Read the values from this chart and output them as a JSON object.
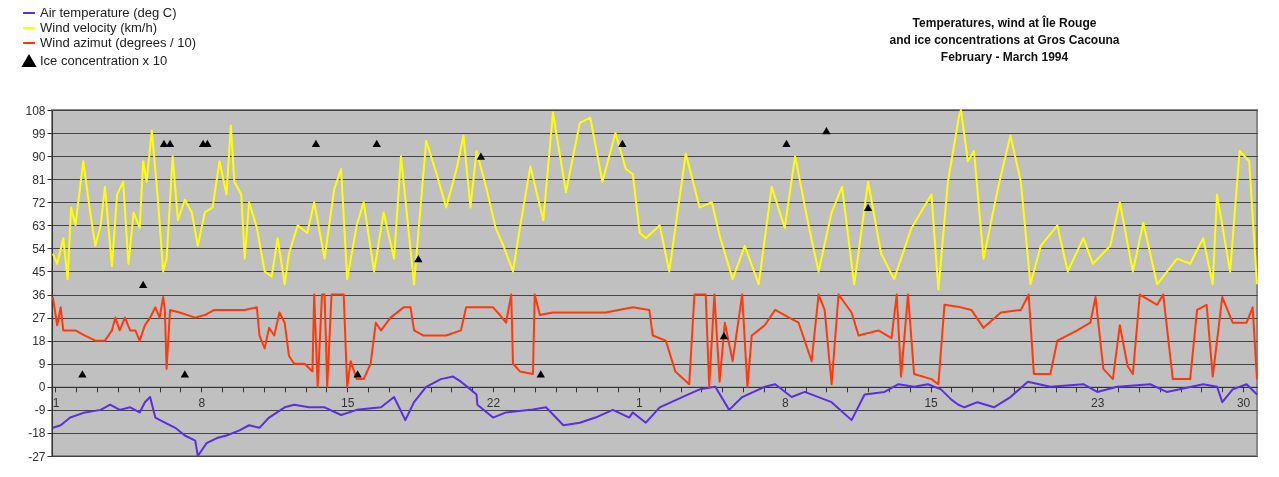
{
  "chart_data": {
    "type": "line",
    "title": "Temperatures, wind at Île Rouge\nand ice concentrations at Gros Cacouna\nFebruary - March  1994",
    "legend": "top left",
    "grid": "y",
    "xlim": [
      "1994-01-31T20:00",
      "1994-03-30T16:00"
    ],
    "ylim": [
      -27,
      108
    ],
    "yticks": [
      -27,
      -18,
      -9,
      0,
      9,
      18,
      27,
      36,
      45,
      54,
      63,
      72,
      81,
      90,
      99,
      108
    ],
    "xticks": [
      {
        "value": "1994-02-01",
        "label": "1"
      },
      {
        "value": "1994-02-02",
        "label": null
      },
      {
        "value": "1994-02-03",
        "label": null
      },
      {
        "value": "1994-02-04",
        "label": null
      },
      {
        "value": "1994-02-05",
        "label": null
      },
      {
        "value": "1994-02-06",
        "label": null
      },
      {
        "value": "1994-02-07",
        "label": null
      },
      {
        "value": "1994-02-08",
        "label": "8"
      },
      {
        "value": "1994-02-09",
        "label": null
      },
      {
        "value": "1994-02-10",
        "label": null
      },
      {
        "value": "1994-02-11",
        "label": null
      },
      {
        "value": "1994-02-12",
        "label": null
      },
      {
        "value": "1994-02-13",
        "label": null
      },
      {
        "value": "1994-02-14",
        "label": null
      },
      {
        "value": "1994-02-15",
        "label": "15"
      },
      {
        "value": "1994-02-16",
        "label": null
      },
      {
        "value": "1994-02-17",
        "label": null
      },
      {
        "value": "1994-02-18",
        "label": null
      },
      {
        "value": "1994-02-19",
        "label": null
      },
      {
        "value": "1994-02-20",
        "label": null
      },
      {
        "value": "1994-02-21",
        "label": null
      },
      {
        "value": "1994-02-22",
        "label": "22"
      },
      {
        "value": "1994-02-23",
        "label": null
      },
      {
        "value": "1994-02-24",
        "label": null
      },
      {
        "value": "1994-02-25",
        "label": null
      },
      {
        "value": "1994-02-26",
        "label": null
      },
      {
        "value": "1994-02-27",
        "label": null
      },
      {
        "value": "1994-02-28",
        "label": null
      },
      {
        "value": "1994-03-01",
        "label": "1"
      },
      {
        "value": "1994-03-02",
        "label": null
      },
      {
        "value": "1994-03-03",
        "label": null
      },
      {
        "value": "1994-03-04",
        "label": null
      },
      {
        "value": "1994-03-05",
        "label": null
      },
      {
        "value": "1994-03-06",
        "label": null
      },
      {
        "value": "1994-03-07",
        "label": null
      },
      {
        "value": "1994-03-08",
        "label": "8"
      },
      {
        "value": "1994-03-09",
        "label": null
      },
      {
        "value": "1994-03-10",
        "label": null
      },
      {
        "value": "1994-03-11",
        "label": null
      },
      {
        "value": "1994-03-12",
        "label": null
      },
      {
        "value": "1994-03-13",
        "label": null
      },
      {
        "value": "1994-03-14",
        "label": null
      },
      {
        "value": "1994-03-15",
        "label": "15"
      },
      {
        "value": "1994-03-16",
        "label": null
      },
      {
        "value": "1994-03-17",
        "label": null
      },
      {
        "value": "1994-03-18",
        "label": null
      },
      {
        "value": "1994-03-19",
        "label": null
      },
      {
        "value": "1994-03-20",
        "label": null
      },
      {
        "value": "1994-03-21",
        "label": null
      },
      {
        "value": "1994-03-22",
        "label": null
      },
      {
        "value": "1994-03-23",
        "label": "23"
      },
      {
        "value": "1994-03-24",
        "label": null
      },
      {
        "value": "1994-03-25",
        "label": null
      },
      {
        "value": "1994-03-26",
        "label": null
      },
      {
        "value": "1994-03-27",
        "label": null
      },
      {
        "value": "1994-03-28",
        "label": null
      },
      {
        "value": "1994-03-29",
        "label": null
      },
      {
        "value": "1994-03-30",
        "label": "30"
      }
    ],
    "series": [
      {
        "name": "Air temperature (deg C)",
        "color": "#5a2ee6",
        "x": [
          "1994-01-31T21:00",
          "1994-02-01T06:00",
          "1994-02-01T17:00",
          "1994-02-02T10:00",
          "1994-02-03T04:00",
          "1994-02-03T15:00",
          "1994-02-04T02:00",
          "1994-02-04T14:00",
          "1994-02-05T01:00",
          "1994-02-05T07:00",
          "1994-02-05T13:00",
          "1994-02-05T19:00",
          "1994-02-06T06:00",
          "1994-02-06T18:00",
          "1994-02-07T05:00",
          "1994-02-07T17:00",
          "1994-02-07T20:00",
          "1994-02-08T06:00",
          "1994-02-08T18:00",
          "1994-02-09T05:00",
          "1994-02-09T20:00",
          "1994-02-10T07:00",
          "1994-02-10T19:00",
          "1994-02-11T06:00",
          "1994-02-12T00:00",
          "1994-02-12T11:00",
          "1994-02-13T04:00",
          "1994-02-13T22:00",
          "1994-02-14T17:00",
          "1994-02-15T11:00",
          "1994-02-16T15:00",
          "1994-02-17T06:00",
          "1994-02-17T19:00",
          "1994-02-18T05:00",
          "1994-02-18T19:00",
          "1994-02-19T12:00",
          "1994-02-20T02:00",
          "1994-02-20T11:00",
          "1994-02-20T22:00",
          "1994-02-21T05:00",
          "1994-02-21T06:00",
          "1994-02-22T00:00",
          "1994-02-22T15:00",
          "1994-02-23T19:00",
          "1994-02-24T13:00",
          "1994-02-25T09:00",
          "1994-02-26T04:00",
          "1994-02-26T22:00",
          "1994-02-27T18:00",
          "1994-02-28T13:00",
          "1994-02-28T17:00",
          "1994-03-01T08:00",
          "1994-03-02T00:00",
          "1994-03-03T02:00",
          "1994-03-03T22:00",
          "1994-03-04T16:00",
          "1994-03-05T08:00",
          "1994-03-05T23:00",
          "1994-03-07T01:00",
          "1994-03-07T13:00",
          "1994-03-08T08:00",
          "1994-03-08T23:00",
          "1994-03-10T06:00",
          "1994-03-11T05:00",
          "1994-03-11T20:00",
          "1994-03-12T19:00",
          "1994-03-13T11:00",
          "1994-03-14T05:00",
          "1994-03-14T21:00",
          "1994-03-15T12:00",
          "1994-03-16T00:00",
          "1994-03-16T08:00",
          "1994-03-16T15:00",
          "1994-03-17T06:00",
          "1994-03-18T01:00",
          "1994-03-18T20:00",
          "1994-03-19T16:00",
          "1994-03-20T18:00",
          "1994-03-22T08:00",
          "1994-03-23T00:00",
          "1994-03-23T23:00",
          "1994-03-25T13:00",
          "1994-03-26T08:00",
          "1994-03-28T02:00",
          "1994-03-28T18:00",
          "1994-03-29T00:00",
          "1994-03-29T12:00",
          "1994-03-30T04:00",
          "1994-03-30T16:00"
        ],
        "values": [
          -16,
          -15,
          -12,
          -10,
          -9,
          -7,
          -9,
          -8,
          -10,
          -6,
          -4,
          -12,
          -14,
          -16,
          -19,
          -21,
          -27,
          -22,
          -20,
          -19,
          -17,
          -15,
          -16,
          -12,
          -8,
          -7,
          -8,
          -8,
          -11,
          -9,
          -8,
          -4,
          -13,
          -6,
          0,
          3,
          4,
          2,
          -1,
          -3,
          -7,
          -12,
          -10,
          -9,
          -8,
          -15,
          -14,
          -12,
          -9,
          -12,
          -10,
          -14,
          -8,
          -4,
          -1,
          0,
          -9,
          -4,
          0,
          1,
          -4,
          -2,
          -6,
          -13,
          -3,
          -2,
          1,
          0,
          1,
          -1,
          -5,
          -7,
          -8,
          -6,
          -8,
          -4,
          2,
          0,
          1,
          -2,
          0,
          1,
          -2,
          1,
          0,
          -6,
          -1,
          1,
          -3
        ]
      },
      {
        "name": "Wind velocity (km/h)",
        "color": "#ffff00",
        "x": [
          "1994-01-31T21:00",
          "1994-02-01T02:00",
          "1994-02-01T09:00",
          "1994-02-01T14:00",
          "1994-02-01T18:00",
          "1994-02-01T23:00",
          "1994-02-02T08:00",
          "1994-02-02T16:00",
          "1994-02-02T22:00",
          "1994-02-03T04:00",
          "1994-02-03T09:00",
          "1994-02-03T17:00",
          "1994-02-03T23:00",
          "1994-02-04T06:00",
          "1994-02-04T12:00",
          "1994-02-04T18:00",
          "1994-02-05T01:00",
          "1994-02-05T05:00",
          "1994-02-05T09:00",
          "1994-02-05T15:00",
          "1994-02-05T22:00",
          "1994-02-06T04:00",
          "1994-02-06T08:00",
          "1994-02-06T15:00",
          "1994-02-06T21:00",
          "1994-02-07T05:00",
          "1994-02-07T13:00",
          "1994-02-07T20:00",
          "1994-02-08T04:00",
          "1994-02-08T13:00",
          "1994-02-08T21:00",
          "1994-02-09T05:00",
          "1994-02-09T10:00",
          "1994-02-09T14:00",
          "1994-02-09T22:00",
          "1994-02-10T02:00",
          "1994-02-10T07:00",
          "1994-02-10T16:00",
          "1994-02-11T01:00",
          "1994-02-11T09:00",
          "1994-02-11T16:00",
          "1994-02-12T00:00",
          "1994-02-12T05:00",
          "1994-02-12T15:00",
          "1994-02-13T02:00",
          "1994-02-13T10:00",
          "1994-02-13T22:00",
          "1994-02-14T09:00",
          "1994-02-14T17:00",
          "1994-02-15T00:00",
          "1994-02-15T11:00",
          "1994-02-15T19:00",
          "1994-02-16T07:00",
          "1994-02-16T18:00",
          "1994-02-17T06:00",
          "1994-02-17T14:00",
          "1994-02-18T05:00",
          "1994-02-18T19:00",
          "1994-02-19T07:00",
          "1994-02-19T18:00",
          "1994-02-20T06:00",
          "1994-02-20T14:00",
          "1994-02-20T22:00",
          "1994-02-21T05:00",
          "1994-02-21T16:00",
          "1994-02-22T03:00",
          "1994-02-22T12:00",
          "1994-02-22T23:00",
          "1994-02-23T07:00",
          "1994-02-23T19:00",
          "1994-02-24T10:00",
          "1994-02-24T21:00",
          "1994-02-25T12:00",
          "1994-02-26T04:00",
          "1994-02-26T16:00",
          "1994-02-27T06:00",
          "1994-02-27T21:00",
          "1994-02-28T09:00",
          "1994-02-28T17:00",
          "1994-03-01T01:00",
          "1994-03-01T08:00",
          "1994-03-02T00:00",
          "1994-03-02T11:00",
          "1994-03-03T06:00",
          "1994-03-03T22:00",
          "1994-03-04T12:00",
          "1994-03-04T21:00",
          "1994-03-05T12:00",
          "1994-03-06T02:00",
          "1994-03-06T18:00",
          "1994-03-07T09:00",
          "1994-03-08T00:00",
          "1994-03-08T12:00",
          "1994-03-09T04:00",
          "1994-03-09T15:00",
          "1994-03-10T06:00",
          "1994-03-10T18:00",
          "1994-03-11T08:00",
          "1994-03-12T00:00",
          "1994-03-12T15:00",
          "1994-03-13T06:00",
          "1994-03-14T02:00",
          "1994-03-15T01:00",
          "1994-03-15T09:00",
          "1994-03-15T20:00",
          "1994-03-16T09:00",
          "1994-03-16T11:00",
          "1994-03-16T19:00",
          "1994-03-17T02:00",
          "1994-03-17T13:00",
          "1994-03-18T06:00",
          "1994-03-18T20:00",
          "1994-03-19T08:00",
          "1994-03-19T19:00",
          "1994-03-20T07:00",
          "1994-03-21T02:00",
          "1994-03-21T14:00",
          "1994-03-22T08:00",
          "1994-03-22T19:00",
          "1994-03-23T15:00",
          "1994-03-24T02:00",
          "1994-03-24T17:00",
          "1994-03-25T05:00",
          "1994-03-25T21:00",
          "1994-03-26T20:00",
          "1994-03-27T11:00",
          "1994-03-28T02:00",
          "1994-03-28T13:00",
          "1994-03-28T18:00",
          "1994-03-29T09:00",
          "1994-03-29T20:00",
          "1994-03-30T07:00",
          "1994-03-30T16:00"
        ],
        "values": [
          52,
          48,
          58,
          42,
          70,
          63,
          88,
          68,
          55,
          63,
          78,
          47,
          75,
          80,
          48,
          68,
          62,
          88,
          80,
          100,
          73,
          45,
          50,
          90,
          65,
          73,
          68,
          55,
          68,
          70,
          88,
          75,
          102,
          80,
          75,
          50,
          72,
          62,
          45,
          43,
          58,
          40,
          52,
          63,
          60,
          72,
          50,
          77,
          85,
          42,
          63,
          72,
          45,
          68,
          50,
          90,
          40,
          96,
          83,
          70,
          85,
          98,
          70,
          92,
          78,
          62,
          55,
          45,
          62,
          86,
          65,
          107,
          76,
          103,
          105,
          80,
          99,
          85,
          83,
          60,
          58,
          63,
          45,
          91,
          70,
          72,
          59,
          42,
          55,
          40,
          78,
          62,
          90,
          62,
          45,
          68,
          78,
          40,
          80,
          52,
          42,
          62,
          75,
          38,
          80,
          106,
          108,
          88,
          92,
          50,
          78,
          98,
          80,
          40,
          55,
          63,
          45,
          58,
          48,
          55,
          72,
          45,
          64,
          40,
          50,
          48,
          58,
          40,
          75,
          45,
          92,
          88,
          40
        ]
      },
      {
        "name": "Wind azimut (degrees / 10)",
        "color": "#ff3a0a",
        "x": [
          "1994-01-31T21:00",
          "1994-02-01T02:00",
          "1994-02-01T06:00",
          "1994-02-01T09:00",
          "1994-02-01T23:00",
          "1994-02-02T10:00",
          "1994-02-02T22:00",
          "1994-02-03T09:00",
          "1994-02-03T17:00",
          "1994-02-03T21:00",
          "1994-02-04T02:00",
          "1994-02-04T08:00",
          "1994-02-04T14:00",
          "1994-02-04T20:00",
          "1994-02-05T01:00",
          "1994-02-05T07:00",
          "1994-02-05T13:00",
          "1994-02-05T19:00",
          "1994-02-06T00:00",
          "1994-02-06T04:00",
          "1994-02-06T06:00",
          "1994-02-06T08:00",
          "1994-02-06T12:00",
          "1994-02-06T23:00",
          "1994-02-07T17:00",
          "1994-02-08T04:00",
          "1994-02-08T15:00",
          "1994-02-09T09:00",
          "1994-02-10T02:00",
          "1994-02-10T16:00",
          "1994-02-10T19:00",
          "1994-02-11T01:00",
          "1994-02-11T06:00",
          "1994-02-11T12:00",
          "1994-02-11T18:00",
          "1994-02-12T00:00",
          "1994-02-12T05:00",
          "1994-02-12T11:00",
          "1994-02-12T23:00",
          "1994-02-13T08:00",
          "1994-02-13T10:00",
          "1994-02-13T14:00",
          "1994-02-13T19:00",
          "1994-02-13T22:00",
          "1994-02-14T01:00",
          "1994-02-14T06:00",
          "1994-02-14T20:00",
          "1994-02-15T00:00",
          "1994-02-15T04:00",
          "1994-02-15T11:00",
          "1994-02-15T19:00",
          "1994-02-16T03:00",
          "1994-02-16T09:00",
          "1994-02-16T15:00",
          "1994-02-17T02:00",
          "1994-02-17T17:00",
          "1994-02-18T01:00",
          "1994-02-18T05:00",
          "1994-02-18T16:00",
          "1994-02-19T00:00",
          "1994-02-19T18:00",
          "1994-02-20T11:00",
          "1994-02-20T17:00",
          "1994-02-21T09:00",
          "1994-02-22T00:00",
          "1994-02-22T08:00",
          "1994-02-22T15:00",
          "1994-02-22T21:00",
          "1994-02-22T23:00",
          "1994-02-23T07:00",
          "1994-02-23T22:00",
          "1994-02-24T00:00",
          "1994-02-24T06:00",
          "1994-02-24T21:00",
          "1994-02-26T04:00",
          "1994-02-27T10:00",
          "1994-02-28T17:00",
          "1994-03-01T12:00",
          "1994-03-01T16:00",
          "1994-03-02T07:00",
          "1994-03-02T18:00",
          "1994-03-03T10:00",
          "1994-03-03T16:00",
          "1994-03-04T05:00",
          "1994-03-04T09:00",
          "1994-03-04T15:00",
          "1994-03-04T21:00",
          "1994-03-05T03:00",
          "1994-03-05T12:00",
          "1994-03-05T23:00",
          "1994-03-06T05:00",
          "1994-03-06T10:00",
          "1994-03-07T01:00",
          "1994-03-07T13:00",
          "1994-03-08T05:00",
          "1994-03-08T16:00",
          "1994-03-09T07:00",
          "1994-03-09T15:00",
          "1994-03-09T22:00",
          "1994-03-10T06:00",
          "1994-03-10T14:00",
          "1994-03-11T05:00",
          "1994-03-11T13:00",
          "1994-03-12T12:00",
          "1994-03-13T03:00",
          "1994-03-13T09:00",
          "1994-03-13T14:00",
          "1994-03-13T22:00",
          "1994-03-14T05:00",
          "1994-03-15T01:00",
          "1994-03-15T09:00",
          "1994-03-15T16:00",
          "1994-03-16T11:00",
          "1994-03-16T23:00",
          "1994-03-17T13:00",
          "1994-03-18T09:00",
          "1994-03-19T08:00",
          "1994-03-19T17:00",
          "1994-03-19T23:00",
          "1994-03-20T18:00",
          "1994-03-21T02:00",
          "1994-03-22T01:00",
          "1994-03-22T16:00",
          "1994-03-22T22:00",
          "1994-03-23T07:00",
          "1994-03-23T18:00",
          "1994-03-24T02:00",
          "1994-03-24T11:00",
          "1994-03-24T17:00",
          "1994-03-25T01:00",
          "1994-03-25T21:00",
          "1994-03-26T04:00",
          "1994-03-26T15:00",
          "1994-03-27T11:00",
          "1994-03-27T19:00",
          "1994-03-28T06:00",
          "1994-03-28T13:00",
          "1994-03-29T00:00",
          "1994-03-29T12:00",
          "1994-03-30T04:00",
          "1994-03-30T11:00",
          "1994-03-30T16:00"
        ],
        "values": [
          35,
          24,
          31,
          22,
          22,
          20,
          18,
          18,
          22,
          27,
          22,
          27,
          22,
          22,
          18,
          24,
          27,
          31,
          27,
          35,
          30,
          7,
          30,
          29,
          27,
          28,
          30,
          30,
          30,
          31,
          20,
          15,
          23,
          20,
          29,
          25,
          12,
          9,
          9,
          6,
          36,
          0,
          36,
          36,
          0,
          36,
          36,
          0,
          10,
          3,
          3,
          9,
          25,
          22,
          27,
          31,
          31,
          22,
          20,
          20,
          20,
          22,
          31,
          31,
          31,
          28,
          25,
          36,
          9,
          6,
          5,
          36,
          28,
          29,
          29,
          29,
          31,
          30,
          20,
          18,
          6,
          1,
          36,
          36,
          0,
          36,
          2,
          25,
          10,
          36,
          0,
          20,
          24,
          30,
          27,
          25,
          10,
          36,
          30,
          1,
          36,
          29,
          20,
          22,
          19,
          36,
          4,
          36,
          5,
          3,
          1,
          32,
          31,
          30,
          23,
          29,
          30,
          36,
          5,
          5,
          18,
          22,
          25,
          35,
          7,
          3,
          24,
          8,
          5,
          36,
          32,
          36,
          3,
          3,
          30,
          32,
          4,
          35,
          25,
          25,
          31,
          3
        ]
      },
      {
        "name": "Ice concentration  x 10",
        "type": "scatter",
        "marker": "triangle",
        "color": "#000000",
        "x": [
          "1994-02-02T07:00",
          "1994-02-05T05:00",
          "1994-02-06T05:00",
          "1994-02-06T12:00",
          "1994-02-07T05:00",
          "1994-02-08T02:00",
          "1994-02-08T07:00",
          "1994-02-13T12:00",
          "1994-02-15T12:00",
          "1994-02-16T10:00",
          "1994-02-18T10:00",
          "1994-02-21T10:00",
          "1994-02-24T07:00",
          "1994-02-28T05:00",
          "1994-03-05T02:00",
          "1994-03-08T02:00",
          "1994-03-10T00:00",
          "1994-03-12T00:00"
        ],
        "values": [
          5,
          40,
          95,
          95,
          5,
          95,
          95,
          95,
          5,
          95,
          50,
          90,
          5,
          95,
          20,
          95,
          100,
          70
        ]
      }
    ]
  }
}
